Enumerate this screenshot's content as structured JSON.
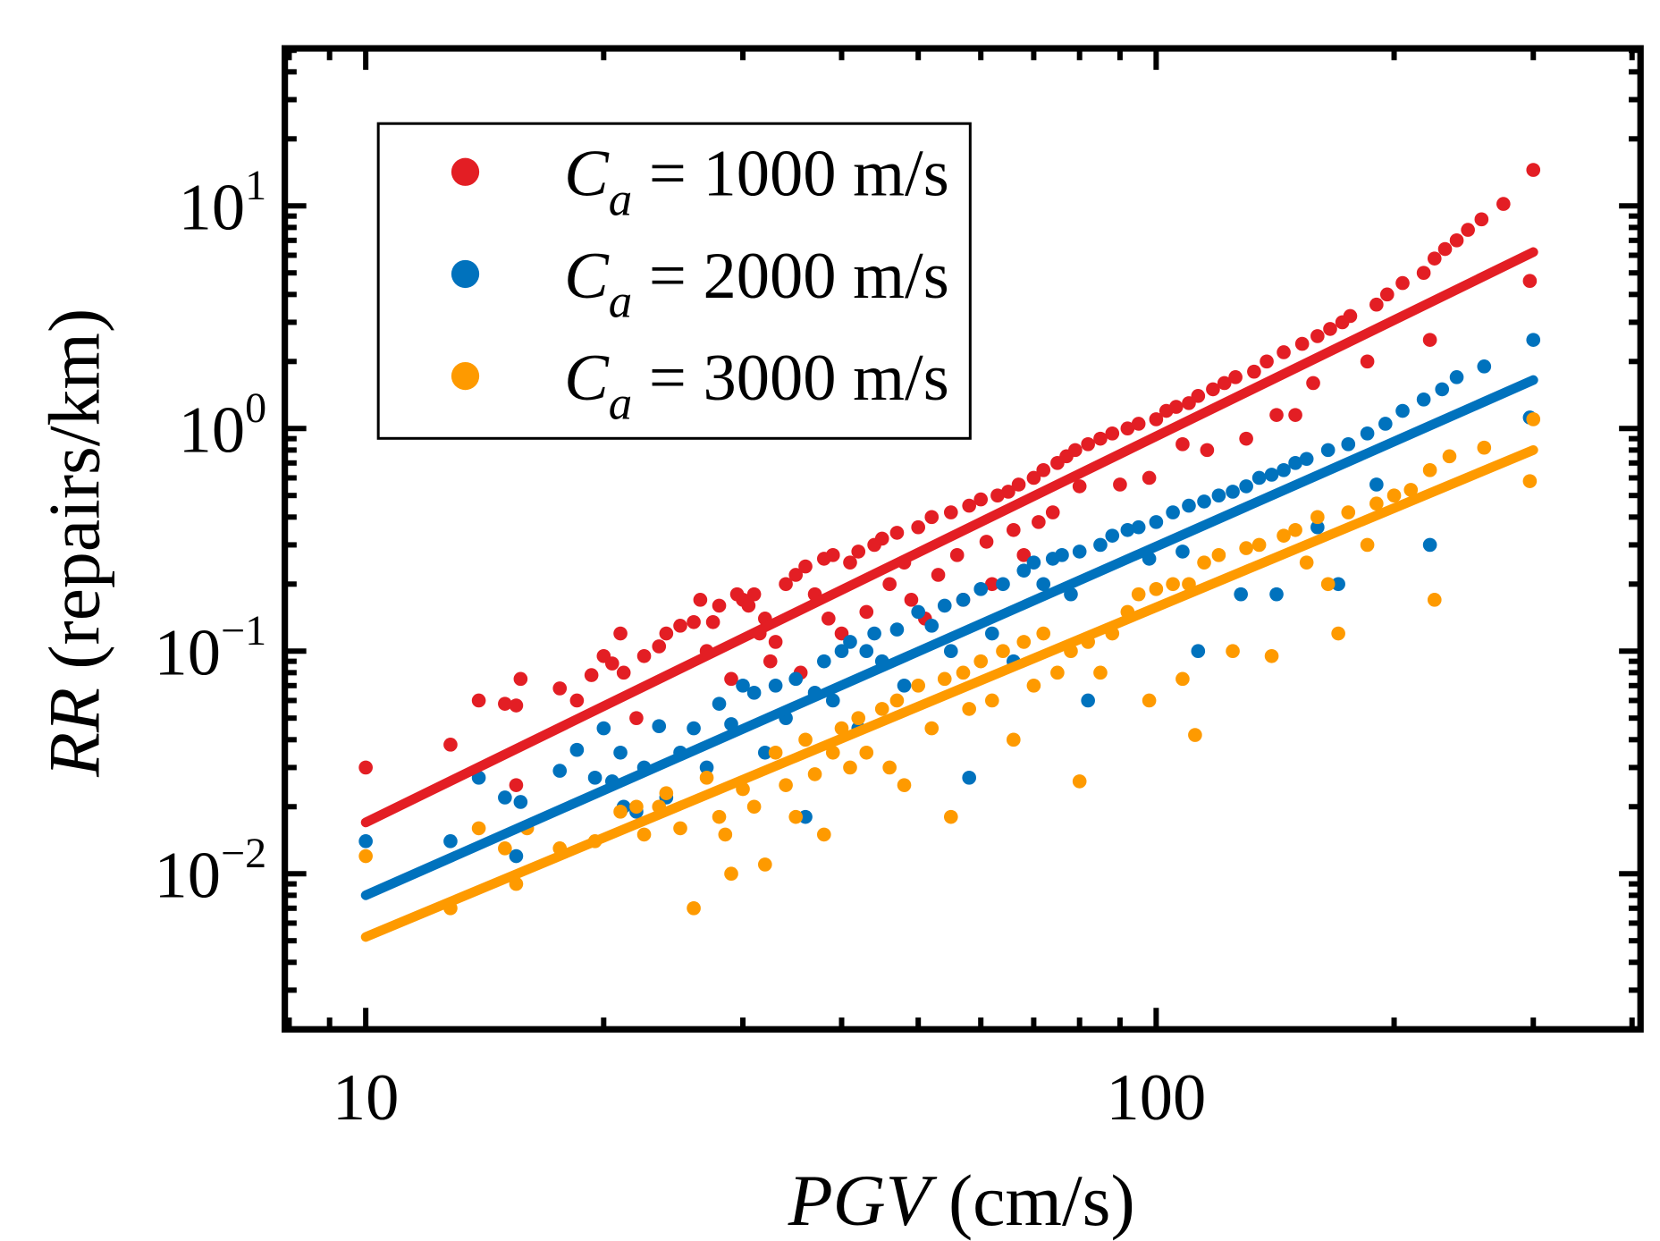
{
  "chart_data": {
    "type": "scatter",
    "xscale": "log",
    "yscale": "log",
    "xlim": [
      7.9,
      410
    ],
    "ylim": [
      0.002,
      51
    ],
    "xlabel": {
      "italic": "PGV",
      "rest": " (cm/s)"
    },
    "ylabel": {
      "italic": "RR",
      "rest": " (repairs/km)"
    },
    "xticks": [
      {
        "value": 10,
        "label": "10"
      },
      {
        "value": 100,
        "label": "100"
      }
    ],
    "yticks": [
      {
        "value": 10,
        "base": "10",
        "exp": "1"
      },
      {
        "value": 1,
        "base": "10",
        "exp": "0"
      },
      {
        "value": 0.1,
        "base": "10",
        "exp": "−1"
      },
      {
        "value": 0.01,
        "base": "10",
        "exp": "−2"
      }
    ],
    "legend_position": "top-left",
    "series": [
      {
        "name": "C_a = 1000 m/s",
        "symbol": "C",
        "sub": "a",
        "text": " = 1000 m/s",
        "color": "#e31e24",
        "fit": [
          [
            10,
            0.017
          ],
          [
            300,
            6.2
          ]
        ],
        "points": [
          [
            10,
            0.03
          ],
          [
            12.8,
            0.038
          ],
          [
            13.9,
            0.06
          ],
          [
            15,
            0.058
          ],
          [
            15.5,
            0.057
          ],
          [
            15.7,
            0.075
          ],
          [
            15.5,
            0.025
          ],
          [
            17.6,
            0.068
          ],
          [
            18.5,
            0.06
          ],
          [
            19.3,
            0.078
          ],
          [
            20,
            0.095
          ],
          [
            20.5,
            0.088
          ],
          [
            21,
            0.12
          ],
          [
            21.2,
            0.08
          ],
          [
            22,
            0.05
          ],
          [
            22.5,
            0.095
          ],
          [
            23.5,
            0.105
          ],
          [
            24,
            0.12
          ],
          [
            25,
            0.13
          ],
          [
            26,
            0.135
          ],
          [
            26.5,
            0.17
          ],
          [
            27,
            0.1
          ],
          [
            27.5,
            0.135
          ],
          [
            28,
            0.16
          ],
          [
            29,
            0.075
          ],
          [
            29.5,
            0.18
          ],
          [
            30,
            0.17
          ],
          [
            30.5,
            0.16
          ],
          [
            31,
            0.18
          ],
          [
            31.5,
            0.12
          ],
          [
            32,
            0.14
          ],
          [
            32.5,
            0.09
          ],
          [
            33,
            0.11
          ],
          [
            34,
            0.2
          ],
          [
            35,
            0.22
          ],
          [
            35.5,
            0.08
          ],
          [
            36,
            0.24
          ],
          [
            37,
            0.18
          ],
          [
            38,
            0.26
          ],
          [
            38.5,
            0.14
          ],
          [
            39,
            0.27
          ],
          [
            40,
            0.12
          ],
          [
            41,
            0.25
          ],
          [
            42,
            0.28
          ],
          [
            43,
            0.15
          ],
          [
            44,
            0.3
          ],
          [
            45,
            0.32
          ],
          [
            46,
            0.2
          ],
          [
            47,
            0.34
          ],
          [
            48,
            0.25
          ],
          [
            49,
            0.17
          ],
          [
            50,
            0.36
          ],
          [
            51,
            0.14
          ],
          [
            52,
            0.4
          ],
          [
            53,
            0.22
          ],
          [
            55,
            0.42
          ],
          [
            56,
            0.27
          ],
          [
            57,
            0.17
          ],
          [
            58,
            0.45
          ],
          [
            60,
            0.48
          ],
          [
            61,
            0.31
          ],
          [
            62,
            0.2
          ],
          [
            63,
            0.5
          ],
          [
            65,
            0.52
          ],
          [
            66,
            0.35
          ],
          [
            67,
            0.56
          ],
          [
            68,
            0.27
          ],
          [
            70,
            0.6
          ],
          [
            71,
            0.38
          ],
          [
            72,
            0.65
          ],
          [
            74,
            0.42
          ],
          [
            75,
            0.7
          ],
          [
            77,
            0.75
          ],
          [
            79,
            0.8
          ],
          [
            80,
            0.55
          ],
          [
            82,
            0.85
          ],
          [
            85,
            0.9
          ],
          [
            88,
            0.95
          ],
          [
            90,
            0.56
          ],
          [
            92,
            1.0
          ],
          [
            95,
            1.05
          ],
          [
            98,
            0.6
          ],
          [
            100,
            1.1
          ],
          [
            103,
            1.2
          ],
          [
            106,
            1.25
          ],
          [
            108,
            0.85
          ],
          [
            110,
            1.3
          ],
          [
            113,
            1.4
          ],
          [
            116,
            0.8
          ],
          [
            118,
            1.5
          ],
          [
            122,
            1.6
          ],
          [
            126,
            1.7
          ],
          [
            130,
            0.9
          ],
          [
            133,
            1.8
          ],
          [
            138,
            2.0
          ],
          [
            142,
            1.15
          ],
          [
            145,
            2.2
          ],
          [
            150,
            1.15
          ],
          [
            153,
            2.4
          ],
          [
            158,
            1.6
          ],
          [
            160,
            2.6
          ],
          [
            166,
            2.8
          ],
          [
            172,
            3.0
          ],
          [
            176,
            3.2
          ],
          [
            185,
            2.0
          ],
          [
            190,
            3.6
          ],
          [
            196,
            4.0
          ],
          [
            205,
            4.5
          ],
          [
            218,
            5.0
          ],
          [
            222,
            2.5
          ],
          [
            225,
            5.8
          ],
          [
            232,
            6.4
          ],
          [
            240,
            7.0
          ],
          [
            248,
            7.8
          ],
          [
            258,
            8.7
          ],
          [
            275,
            10.2
          ],
          [
            297,
            4.6
          ],
          [
            300,
            14.5
          ]
        ]
      },
      {
        "name": "C_a = 2000 m/s",
        "symbol": "C",
        "sub": "a",
        "text": " = 2000 m/s",
        "color": "#0072bd",
        "fit": [
          [
            10,
            0.008
          ],
          [
            300,
            1.65
          ]
        ],
        "points": [
          [
            10,
            0.014
          ],
          [
            12.8,
            0.014
          ],
          [
            13.9,
            0.027
          ],
          [
            15,
            0.022
          ],
          [
            15.5,
            0.012
          ],
          [
            15.7,
            0.021
          ],
          [
            17.6,
            0.029
          ],
          [
            18.5,
            0.036
          ],
          [
            19.5,
            0.027
          ],
          [
            20,
            0.045
          ],
          [
            20.5,
            0.026
          ],
          [
            21,
            0.035
          ],
          [
            21.2,
            0.02
          ],
          [
            22,
            0.019
          ],
          [
            22.5,
            0.03
          ],
          [
            23.5,
            0.046
          ],
          [
            24,
            0.022
          ],
          [
            25,
            0.035
          ],
          [
            26,
            0.045
          ],
          [
            27,
            0.03
          ],
          [
            28,
            0.058
          ],
          [
            29,
            0.047
          ],
          [
            30,
            0.07
          ],
          [
            31,
            0.065
          ],
          [
            32,
            0.035
          ],
          [
            33,
            0.07
          ],
          [
            34,
            0.05
          ],
          [
            35,
            0.075
          ],
          [
            36,
            0.018
          ],
          [
            37,
            0.065
          ],
          [
            38,
            0.09
          ],
          [
            39,
            0.06
          ],
          [
            40,
            0.1
          ],
          [
            41,
            0.11
          ],
          [
            42,
            0.045
          ],
          [
            43,
            0.1
          ],
          [
            44,
            0.12
          ],
          [
            45,
            0.09
          ],
          [
            47,
            0.125
          ],
          [
            48,
            0.07
          ],
          [
            50,
            0.15
          ],
          [
            52,
            0.13
          ],
          [
            54,
            0.16
          ],
          [
            55,
            0.1
          ],
          [
            57,
            0.17
          ],
          [
            58,
            0.027
          ],
          [
            60,
            0.19
          ],
          [
            62,
            0.12
          ],
          [
            64,
            0.2
          ],
          [
            66,
            0.09
          ],
          [
            68,
            0.23
          ],
          [
            70,
            0.25
          ],
          [
            72,
            0.2
          ],
          [
            74,
            0.26
          ],
          [
            76,
            0.27
          ],
          [
            78,
            0.18
          ],
          [
            80,
            0.28
          ],
          [
            82,
            0.06
          ],
          [
            85,
            0.3
          ],
          [
            88,
            0.33
          ],
          [
            92,
            0.35
          ],
          [
            95,
            0.36
          ],
          [
            98,
            0.26
          ],
          [
            100,
            0.38
          ],
          [
            105,
            0.42
          ],
          [
            108,
            0.28
          ],
          [
            110,
            0.45
          ],
          [
            113,
            0.1
          ],
          [
            115,
            0.47
          ],
          [
            120,
            0.5
          ],
          [
            125,
            0.52
          ],
          [
            128,
            0.18
          ],
          [
            130,
            0.55
          ],
          [
            135,
            0.6
          ],
          [
            140,
            0.62
          ],
          [
            142,
            0.18
          ],
          [
            145,
            0.65
          ],
          [
            150,
            0.7
          ],
          [
            155,
            0.73
          ],
          [
            160,
            0.36
          ],
          [
            165,
            0.8
          ],
          [
            170,
            0.2
          ],
          [
            175,
            0.85
          ],
          [
            185,
            0.95
          ],
          [
            190,
            0.56
          ],
          [
            195,
            1.05
          ],
          [
            205,
            1.2
          ],
          [
            218,
            1.35
          ],
          [
            222,
            0.3
          ],
          [
            230,
            1.5
          ],
          [
            240,
            1.7
          ],
          [
            260,
            1.9
          ],
          [
            297,
            1.12
          ],
          [
            300,
            2.5
          ]
        ]
      },
      {
        "name": "C_a = 3000 m/s",
        "symbol": "C",
        "sub": "a",
        "text": " = 3000 m/s",
        "color": "#fe9a00",
        "fit": [
          [
            10,
            0.0052
          ],
          [
            300,
            0.8
          ]
        ],
        "points": [
          [
            10,
            0.012
          ],
          [
            12.8,
            0.007
          ],
          [
            13.9,
            0.016
          ],
          [
            15,
            0.013
          ],
          [
            15.5,
            0.009
          ],
          [
            16,
            0.016
          ],
          [
            17.6,
            0.013
          ],
          [
            19.5,
            0.014
          ],
          [
            21,
            0.019
          ],
          [
            22,
            0.02
          ],
          [
            22.5,
            0.015
          ],
          [
            23.5,
            0.02
          ],
          [
            24,
            0.023
          ],
          [
            25,
            0.016
          ],
          [
            26,
            0.007
          ],
          [
            27,
            0.027
          ],
          [
            28,
            0.018
          ],
          [
            28.5,
            0.015
          ],
          [
            29,
            0.01
          ],
          [
            30,
            0.024
          ],
          [
            31,
            0.02
          ],
          [
            32,
            0.011
          ],
          [
            33,
            0.035
          ],
          [
            34,
            0.025
          ],
          [
            35,
            0.018
          ],
          [
            36,
            0.04
          ],
          [
            37,
            0.028
          ],
          [
            38,
            0.015
          ],
          [
            39,
            0.035
          ],
          [
            40,
            0.045
          ],
          [
            41,
            0.03
          ],
          [
            42,
            0.05
          ],
          [
            43,
            0.035
          ],
          [
            45,
            0.055
          ],
          [
            46,
            0.03
          ],
          [
            47,
            0.06
          ],
          [
            48,
            0.025
          ],
          [
            50,
            0.07
          ],
          [
            52,
            0.045
          ],
          [
            54,
            0.075
          ],
          [
            55,
            0.018
          ],
          [
            57,
            0.08
          ],
          [
            58,
            0.055
          ],
          [
            60,
            0.09
          ],
          [
            62,
            0.06
          ],
          [
            64,
            0.1
          ],
          [
            66,
            0.04
          ],
          [
            68,
            0.11
          ],
          [
            70,
            0.07
          ],
          [
            72,
            0.12
          ],
          [
            75,
            0.08
          ],
          [
            78,
            0.1
          ],
          [
            80,
            0.026
          ],
          [
            82,
            0.11
          ],
          [
            85,
            0.08
          ],
          [
            88,
            0.12
          ],
          [
            92,
            0.15
          ],
          [
            95,
            0.18
          ],
          [
            98,
            0.06
          ],
          [
            100,
            0.19
          ],
          [
            105,
            0.2
          ],
          [
            108,
            0.075
          ],
          [
            110,
            0.2
          ],
          [
            112,
            0.042
          ],
          [
            115,
            0.25
          ],
          [
            120,
            0.27
          ],
          [
            125,
            0.1
          ],
          [
            130,
            0.29
          ],
          [
            135,
            0.3
          ],
          [
            140,
            0.095
          ],
          [
            145,
            0.33
          ],
          [
            150,
            0.35
          ],
          [
            155,
            0.25
          ],
          [
            160,
            0.4
          ],
          [
            165,
            0.2
          ],
          [
            170,
            0.12
          ],
          [
            175,
            0.42
          ],
          [
            185,
            0.3
          ],
          [
            190,
            0.46
          ],
          [
            200,
            0.5
          ],
          [
            210,
            0.53
          ],
          [
            222,
            0.65
          ],
          [
            225,
            0.17
          ],
          [
            235,
            0.75
          ],
          [
            260,
            0.82
          ],
          [
            297,
            0.58
          ],
          [
            300,
            1.1
          ]
        ]
      }
    ]
  }
}
